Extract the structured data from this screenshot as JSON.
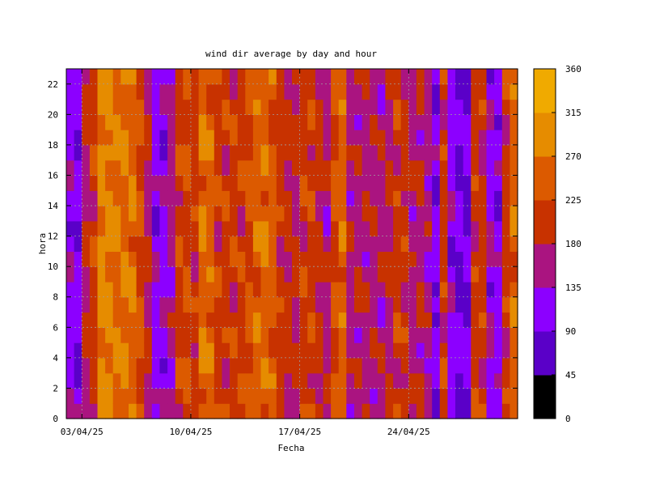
{
  "chart_data": {
    "type": "heatmap",
    "title": "wind dir average by day and hour",
    "xlabel": "Fecha",
    "ylabel": "hora",
    "x_ticks": [
      "03/04/25",
      "10/04/25",
      "17/04/25",
      "24/04/25"
    ],
    "x_tick_days": [
      3,
      10,
      17,
      24
    ],
    "x_range_days": [
      2,
      31
    ],
    "y_ticks": [
      0,
      2,
      4,
      6,
      8,
      10,
      12,
      14,
      16,
      18,
      20,
      22
    ],
    "ylim": [
      0,
      23
    ],
    "grid": true,
    "colorbar": {
      "min": 0,
      "max": 360,
      "ticks": [
        0,
        45,
        90,
        135,
        180,
        225,
        270,
        315,
        360
      ],
      "colors": [
        "#000000",
        "#5a00c8",
        "#8c00ff",
        "#aa1480",
        "#c83200",
        "#dc5a00",
        "#e68c00",
        "#f0aa00",
        "#ffff00"
      ]
    },
    "column_profile_days": [
      2,
      2.5,
      3,
      3.5,
      4,
      4.5,
      5,
      5.5,
      6,
      6.5,
      7,
      7.5,
      8,
      8.5,
      9,
      9.5,
      10,
      10.5,
      11,
      11.5,
      12,
      12.5,
      13,
      13.5,
      14,
      14.5,
      15,
      15.5,
      16,
      16.5,
      17,
      17.5,
      18,
      18.5,
      19,
      19.5,
      20,
      20.5,
      21,
      21.5,
      22,
      22.5,
      23,
      23.5,
      24,
      24.5,
      25,
      25.5,
      26,
      26.5,
      27,
      27.5,
      28,
      28.5,
      29,
      29.5,
      30,
      30.5,
      31
    ],
    "column_profile_deg": [
      120,
      100,
      180,
      200,
      280,
      280,
      270,
      270,
      255,
      230,
      180,
      110,
      120,
      150,
      210,
      220,
      195,
      260,
      250,
      205,
      200,
      210,
      210,
      230,
      250,
      255,
      240,
      200,
      190,
      185,
      205,
      215,
      190,
      160,
      230,
      250,
      160,
      165,
      170,
      170,
      160,
      180,
      200,
      195,
      160,
      170,
      150,
      100,
      200,
      110,
      90,
      95,
      200,
      195,
      120,
      110,
      200,
      250,
      240
    ]
  }
}
